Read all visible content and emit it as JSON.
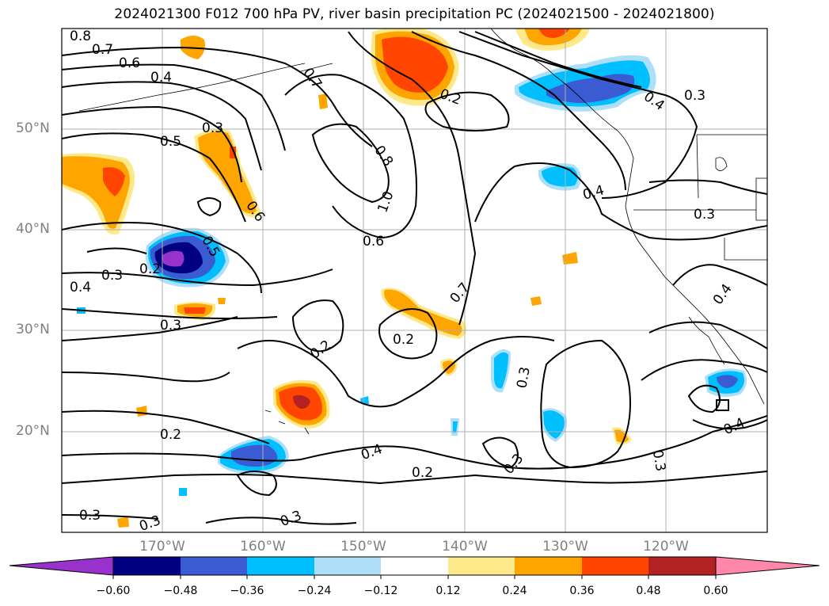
{
  "title": "2024021300 F012 700 hPa PV, river basin precipitation PC (2024021500 - 2024021800)",
  "lat_labels": [
    "50°N",
    "40°N",
    "30°N",
    "20°N"
  ],
  "lon_labels": [
    "170°W",
    "160°W",
    "150°W",
    "140°W",
    "130°W",
    "120°W"
  ],
  "colorbar": {
    "tick_labels": [
      "−0.60",
      "−0.48",
      "−0.36",
      "−0.24",
      "−0.12",
      "0.12",
      "0.24",
      "0.36",
      "0.48",
      "0.60"
    ],
    "colors": [
      "#9932cc",
      "#000080",
      "#3a5bd2",
      "#00bfff",
      "#ade0f8",
      "#ffffff",
      "#fde98a",
      "#ffa500",
      "#ff4500",
      "#b22222",
      "#ff88aa"
    ]
  },
  "contour_labels": [
    "0.8",
    "0.7",
    "0.6",
    "0.4",
    "0.3",
    "0.5",
    "0.6",
    "0.3",
    "0.5",
    "0.2",
    "0.3",
    "0.4",
    "0.7",
    "0.8",
    "1.0",
    "0.6",
    "0.7",
    "0.2",
    "0.2",
    "0.3",
    "0.4",
    "0.3",
    "0.2",
    "0.3",
    "0.2",
    "0.3",
    "0.3",
    "0.4",
    "0.3",
    "0.3",
    "0.4",
    "0.4",
    "0.3",
    "0.2",
    "0.4"
  ]
}
